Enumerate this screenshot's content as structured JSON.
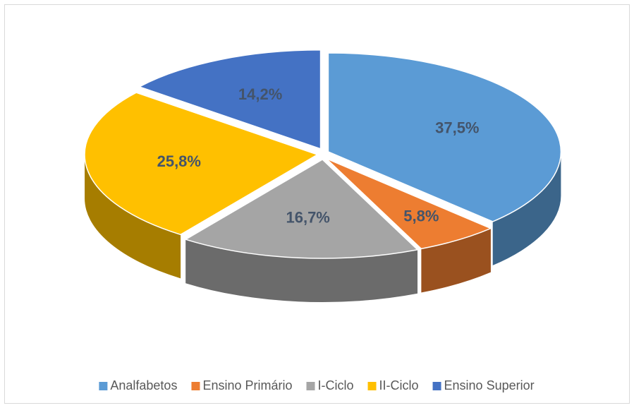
{
  "chart_data": {
    "type": "pie",
    "categories": [
      "Analfabetos",
      "Ensino Primário",
      "I-Ciclo",
      "II-Ciclo",
      "Ensino Superior"
    ],
    "values": [
      37.5,
      5.8,
      16.7,
      25.8,
      14.2
    ],
    "value_labels": [
      "37,5%",
      "5,8%",
      "16,7%",
      "25,8%",
      "14,2%"
    ],
    "colors": [
      "#5B9BD5",
      "#ED7D31",
      "#A5A5A5",
      "#FFC000",
      "#4472C4"
    ],
    "legend": "bottom"
  }
}
